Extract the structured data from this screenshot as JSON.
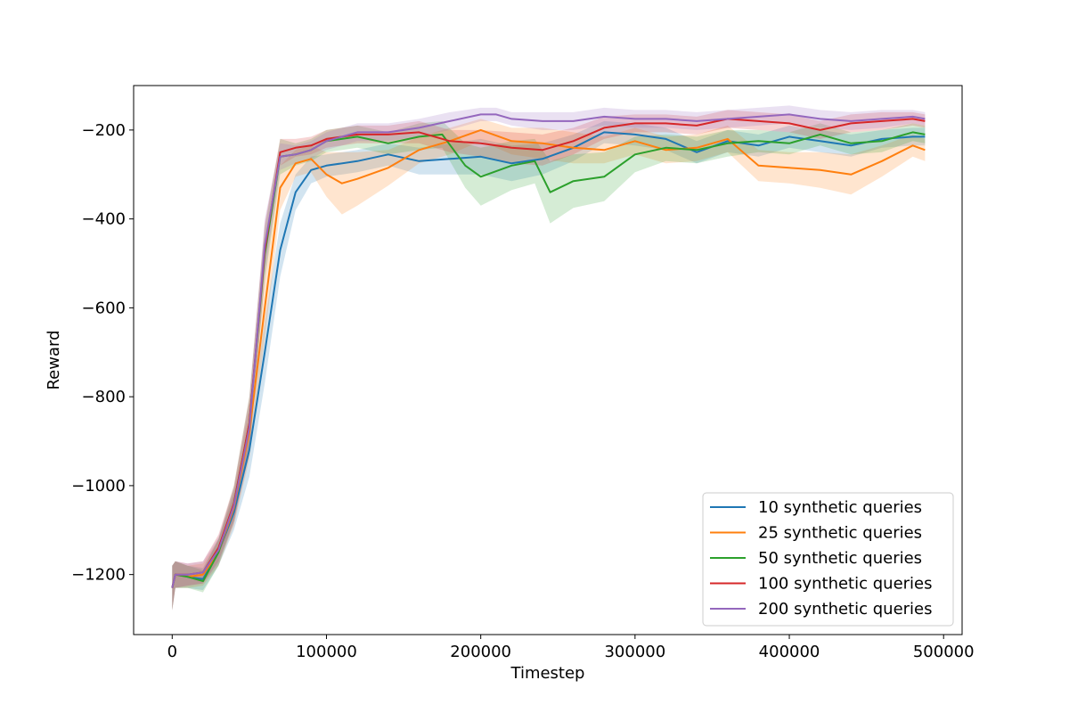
{
  "chart_data": {
    "type": "line",
    "title": "",
    "xlabel": "Timestep",
    "ylabel": "Reward",
    "xlim": [
      -25000,
      512000
    ],
    "ylim": [
      -1335,
      -100
    ],
    "xticks": [
      0,
      100000,
      200000,
      300000,
      400000,
      500000
    ],
    "xtick_labels": [
      "0",
      "100000",
      "200000",
      "300000",
      "400000",
      "500000"
    ],
    "yticks": [
      -1200,
      -1000,
      -800,
      -600,
      -400,
      -200
    ],
    "ytick_labels": [
      "−1200",
      "−1000",
      "−800",
      "−600",
      "−400",
      "−200"
    ],
    "grid": false,
    "legend_position": "lower-right",
    "shaded_band": "standard deviation band around each line",
    "series": [
      {
        "name": "10 synthetic queries",
        "color": "#1f77b4",
        "x": [
          0,
          2000,
          10000,
          20000,
          30000,
          40000,
          50000,
          60000,
          70000,
          80000,
          90000,
          100000,
          120000,
          140000,
          160000,
          180000,
          200000,
          220000,
          240000,
          260000,
          280000,
          300000,
          320000,
          340000,
          360000,
          380000,
          400000,
          420000,
          440000,
          460000,
          480000,
          488000
        ],
        "y": [
          -1230,
          -1200,
          -1205,
          -1210,
          -1150,
          -1060,
          -920,
          -700,
          -470,
          -340,
          -290,
          -280,
          -270,
          -255,
          -270,
          -265,
          -260,
          -275,
          -265,
          -240,
          -205,
          -210,
          -220,
          -250,
          -225,
          -235,
          -215,
          -225,
          -235,
          -220,
          -215,
          -215
        ],
        "band": [
          50,
          30,
          25,
          25,
          30,
          40,
          60,
          70,
          60,
          40,
          30,
          25,
          25,
          25,
          30,
          35,
          40,
          40,
          35,
          30,
          25,
          25,
          25,
          25,
          25,
          25,
          25,
          25,
          25,
          20,
          20,
          20
        ]
      },
      {
        "name": "25 synthetic queries",
        "color": "#ff7f0e",
        "x": [
          0,
          2000,
          10000,
          20000,
          30000,
          40000,
          50000,
          60000,
          70000,
          80000,
          90000,
          100000,
          110000,
          120000,
          140000,
          160000,
          180000,
          200000,
          220000,
          240000,
          260000,
          280000,
          300000,
          320000,
          340000,
          360000,
          380000,
          400000,
          420000,
          440000,
          460000,
          480000,
          488000
        ],
        "y": [
          -1230,
          -1200,
          -1205,
          -1200,
          -1150,
          -1050,
          -880,
          -600,
          -330,
          -275,
          -265,
          -300,
          -320,
          -310,
          -285,
          -245,
          -225,
          -200,
          -225,
          -230,
          -240,
          -245,
          -225,
          -245,
          -240,
          -220,
          -280,
          -285,
          -290,
          -300,
          -270,
          -235,
          -245
        ],
        "band": [
          50,
          30,
          25,
          25,
          30,
          40,
          60,
          70,
          50,
          30,
          30,
          50,
          70,
          60,
          40,
          30,
          30,
          25,
          30,
          35,
          35,
          30,
          30,
          30,
          30,
          30,
          35,
          35,
          40,
          45,
          35,
          25,
          25
        ]
      },
      {
        "name": "50 synthetic queries",
        "color": "#2ca02c",
        "x": [
          0,
          2000,
          10000,
          20000,
          30000,
          40000,
          50000,
          60000,
          70000,
          80000,
          90000,
          100000,
          120000,
          140000,
          160000,
          175000,
          190000,
          200000,
          220000,
          235000,
          245000,
          260000,
          280000,
          300000,
          320000,
          340000,
          360000,
          380000,
          400000,
          420000,
          440000,
          460000,
          480000,
          488000
        ],
        "y": [
          -1230,
          -1200,
          -1205,
          -1215,
          -1150,
          -1040,
          -860,
          -480,
          -260,
          -255,
          -245,
          -225,
          -215,
          -230,
          -215,
          -210,
          -280,
          -305,
          -280,
          -270,
          -340,
          -315,
          -305,
          -255,
          -240,
          -245,
          -230,
          -225,
          -230,
          -210,
          -230,
          -225,
          -205,
          -210
        ],
        "band": [
          50,
          30,
          25,
          25,
          30,
          40,
          60,
          60,
          40,
          25,
          25,
          25,
          25,
          25,
          30,
          30,
          50,
          65,
          55,
          50,
          70,
          60,
          55,
          40,
          30,
          30,
          30,
          25,
          25,
          25,
          25,
          25,
          20,
          20
        ]
      },
      {
        "name": "100 synthetic queries",
        "color": "#d62728",
        "x": [
          0,
          2000,
          10000,
          20000,
          30000,
          40000,
          50000,
          60000,
          70000,
          80000,
          90000,
          100000,
          120000,
          140000,
          160000,
          180000,
          200000,
          220000,
          240000,
          260000,
          280000,
          300000,
          320000,
          340000,
          360000,
          380000,
          400000,
          420000,
          440000,
          460000,
          480000,
          488000
        ],
        "y": [
          -1230,
          -1200,
          -1200,
          -1195,
          -1140,
          -1040,
          -860,
          -470,
          -250,
          -240,
          -235,
          -220,
          -210,
          -210,
          -205,
          -225,
          -230,
          -240,
          -245,
          -225,
          -195,
          -185,
          -185,
          -190,
          -175,
          -180,
          -185,
          -200,
          -185,
          -180,
          -175,
          -180
        ],
        "band": [
          50,
          30,
          25,
          25,
          30,
          40,
          60,
          60,
          30,
          20,
          20,
          20,
          20,
          20,
          25,
          25,
          30,
          35,
          35,
          30,
          25,
          20,
          20,
          20,
          20,
          20,
          20,
          20,
          20,
          20,
          15,
          15
        ]
      },
      {
        "name": "200 synthetic queries",
        "color": "#9467bd",
        "x": [
          0,
          2000,
          10000,
          20000,
          30000,
          40000,
          50000,
          60000,
          70000,
          80000,
          90000,
          100000,
          120000,
          140000,
          160000,
          180000,
          200000,
          210000,
          220000,
          240000,
          260000,
          280000,
          300000,
          320000,
          340000,
          360000,
          380000,
          400000,
          420000,
          440000,
          460000,
          480000,
          488000
        ],
        "y": [
          -1230,
          -1200,
          -1200,
          -1195,
          -1145,
          -1045,
          -870,
          -460,
          -260,
          -255,
          -245,
          -225,
          -205,
          -205,
          -195,
          -180,
          -165,
          -165,
          -175,
          -180,
          -180,
          -170,
          -175,
          -175,
          -180,
          -175,
          -170,
          -165,
          -175,
          -180,
          -175,
          -170,
          -175
        ],
        "band": [
          50,
          30,
          25,
          25,
          30,
          40,
          60,
          60,
          30,
          20,
          20,
          20,
          20,
          20,
          20,
          20,
          15,
          15,
          15,
          20,
          20,
          20,
          20,
          20,
          20,
          20,
          20,
          20,
          20,
          20,
          20,
          15,
          15
        ]
      }
    ]
  }
}
